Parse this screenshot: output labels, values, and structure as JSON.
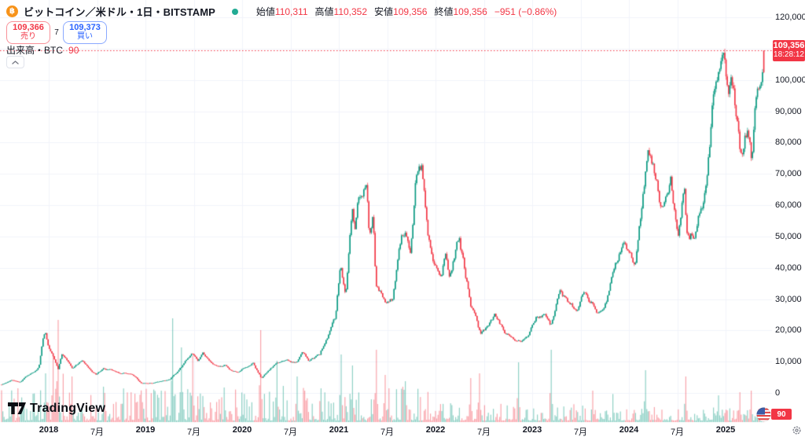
{
  "header": {
    "title": "ビットコイン／米ドル・1日・BITSTAMP",
    "ohlc": [
      {
        "label": "始値",
        "value": "110,311"
      },
      {
        "label": "高値",
        "value": "110,352"
      },
      {
        "label": "安値",
        "value": "109,356"
      },
      {
        "label": "終値",
        "value": "109,356"
      }
    ],
    "change": "−951 (−0.86%)"
  },
  "trade_panel": {
    "sell": {
      "price": "109,366",
      "label": "売り"
    },
    "spread": "7",
    "buy": {
      "price": "109,373",
      "label": "買い"
    }
  },
  "volume_row": {
    "label": "出来高・BTC",
    "value": "90"
  },
  "last_price_label": {
    "price": "109,356",
    "time": "18:28:12"
  },
  "volume_axis_label": "90",
  "watermark": "TradingView",
  "chart_data": {
    "type": "candlestick",
    "title": "ビットコイン／米ドル・1日・BITSTAMP",
    "interval": "1日",
    "last_price": 109356,
    "last_time": "18:28:12",
    "ohlc": {
      "open": 110311,
      "high": 110352,
      "low": 109356,
      "close": 109356,
      "change": -951,
      "change_pct": -0.86
    },
    "volume_btc": 90,
    "y_axis": {
      "min": 0,
      "max": 120000,
      "step": 10000
    },
    "y_tick_labels": [
      "0",
      "10,000",
      "20,000",
      "30,000",
      "40,000",
      "50,000",
      "60,000",
      "70,000",
      "80,000",
      "90,000",
      "100,000",
      "110,000",
      "120,000"
    ],
    "x_ticks": [
      {
        "d": "2018-01-01",
        "label": "2018",
        "year": true
      },
      {
        "d": "2018-07-01",
        "label": "7月"
      },
      {
        "d": "2019-01-01",
        "label": "2019",
        "year": true
      },
      {
        "d": "2019-07-01",
        "label": "7月"
      },
      {
        "d": "2020-01-01",
        "label": "2020",
        "year": true
      },
      {
        "d": "2020-07-01",
        "label": "7月"
      },
      {
        "d": "2021-01-01",
        "label": "2021",
        "year": true
      },
      {
        "d": "2021-07-01",
        "label": "7月"
      },
      {
        "d": "2022-01-01",
        "label": "2022",
        "year": true
      },
      {
        "d": "2022-07-01",
        "label": "7月"
      },
      {
        "d": "2023-01-01",
        "label": "2023",
        "year": true
      },
      {
        "d": "2023-07-01",
        "label": "7月"
      },
      {
        "d": "2024-01-01",
        "label": "2024",
        "year": true
      },
      {
        "d": "2024-07-01",
        "label": "7月"
      },
      {
        "d": "2025-01-01",
        "label": "2025",
        "year": true
      }
    ],
    "price_anchors": [
      [
        "2017-07-01",
        2500
      ],
      [
        "2017-08-15",
        4200
      ],
      [
        "2017-09-14",
        3400
      ],
      [
        "2017-10-12",
        5600
      ],
      [
        "2017-11-08",
        7400
      ],
      [
        "2017-11-25",
        8800
      ],
      [
        "2017-12-08",
        16200
      ],
      [
        "2017-12-17",
        19500
      ],
      [
        "2018-01-01",
        13700
      ],
      [
        "2018-01-16",
        11200
      ],
      [
        "2018-02-06",
        7000
      ],
      [
        "2018-02-20",
        11300
      ],
      [
        "2018-03-29",
        7100
      ],
      [
        "2018-05-05",
        9800
      ],
      [
        "2018-06-28",
        6100
      ],
      [
        "2018-07-25",
        8200
      ],
      [
        "2018-09-20",
        6450
      ],
      [
        "2018-11-12",
        6350
      ],
      [
        "2018-12-15",
        3250
      ],
      [
        "2019-02-07",
        3400
      ],
      [
        "2019-04-01",
        4150
      ],
      [
        "2019-05-13",
        7900
      ],
      [
        "2019-06-26",
        13000
      ],
      [
        "2019-07-16",
        9700
      ],
      [
        "2019-08-05",
        11600
      ],
      [
        "2019-09-24",
        8450
      ],
      [
        "2019-10-26",
        9250
      ],
      [
        "2019-11-24",
        6900
      ],
      [
        "2019-12-17",
        6850
      ],
      [
        "2020-02-13",
        10300
      ],
      [
        "2020-03-13",
        5000
      ],
      [
        "2020-04-29",
        8800
      ],
      [
        "2020-06-01",
        9500
      ],
      [
        "2020-07-20",
        9200
      ],
      [
        "2020-08-17",
        12250
      ],
      [
        "2020-09-08",
        10200
      ],
      [
        "2020-10-20",
        12000
      ],
      [
        "2020-11-24",
        19100
      ],
      [
        "2020-12-19",
        23800
      ],
      [
        "2021-01-08",
        40600
      ],
      [
        "2021-01-27",
        30400
      ],
      [
        "2021-02-21",
        57400
      ],
      [
        "2021-03-01",
        49600
      ],
      [
        "2021-03-13",
        61200
      ],
      [
        "2021-04-14",
        64600
      ],
      [
        "2021-04-25",
        49100
      ],
      [
        "2021-05-09",
        58300
      ],
      [
        "2021-05-19",
        37000
      ],
      [
        "2021-06-22",
        29700
      ],
      [
        "2021-07-20",
        29800
      ],
      [
        "2021-08-23",
        50200
      ],
      [
        "2021-09-07",
        52600
      ],
      [
        "2021-09-29",
        41300
      ],
      [
        "2021-10-20",
        66900
      ],
      [
        "2021-11-09",
        68500
      ],
      [
        "2021-12-04",
        49300
      ],
      [
        "2022-01-22",
        35100
      ],
      [
        "2022-02-10",
        44400
      ],
      [
        "2022-02-24",
        35200
      ],
      [
        "2022-03-29",
        47500
      ],
      [
        "2022-05-12",
        28200
      ],
      [
        "2022-06-18",
        18300
      ],
      [
        "2022-07-13",
        19900
      ],
      [
        "2022-08-13",
        24400
      ],
      [
        "2022-09-21",
        18600
      ],
      [
        "2022-11-09",
        15900
      ],
      [
        "2022-12-16",
        16700
      ],
      [
        "2023-01-21",
        22700
      ],
      [
        "2023-02-16",
        24600
      ],
      [
        "2023-03-10",
        20100
      ],
      [
        "2023-04-13",
        30400
      ],
      [
        "2023-06-15",
        25100
      ],
      [
        "2023-07-13",
        31400
      ],
      [
        "2023-09-11",
        25200
      ],
      [
        "2023-10-01",
        27000
      ],
      [
        "2023-10-24",
        33900
      ],
      [
        "2023-12-08",
        44200
      ],
      [
        "2024-01-23",
        39600
      ],
      [
        "2024-02-28",
        62400
      ],
      [
        "2024-03-13",
        73000
      ],
      [
        "2024-05-01",
        57400
      ],
      [
        "2024-06-06",
        71000
      ],
      [
        "2024-07-05",
        54100
      ],
      [
        "2024-07-29",
        69800
      ],
      [
        "2024-08-05",
        54000
      ],
      [
        "2024-09-06",
        54300
      ],
      [
        "2024-10-20",
        69000
      ],
      [
        "2024-11-22",
        98900
      ],
      [
        "2024-12-17",
        106000
      ],
      [
        "2025-01-13",
        94500
      ],
      [
        "2025-01-21",
        106100
      ],
      [
        "2025-02-03",
        97700
      ],
      [
        "2025-02-28",
        79000
      ],
      [
        "2025-03-24",
        87500
      ],
      [
        "2025-04-08",
        76300
      ],
      [
        "2025-04-25",
        94700
      ],
      [
        "2025-05-10",
        104100
      ],
      [
        "2025-05-22",
        110300
      ],
      [
        "2025-05-26",
        109356
      ]
    ],
    "volume_spikes": [
      [
        "2017-12-20",
        62
      ],
      [
        "2018-01-17",
        85
      ],
      [
        "2018-02-05",
        130
      ],
      [
        "2018-03-30",
        58
      ],
      [
        "2019-04-11",
        132
      ],
      [
        "2019-05-14",
        95
      ],
      [
        "2019-06-27",
        84
      ],
      [
        "2020-03-12",
        117
      ],
      [
        "2020-05-10",
        78
      ],
      [
        "2020-07-27",
        58
      ],
      [
        "2021-01-11",
        86
      ],
      [
        "2021-02-23",
        72
      ],
      [
        "2021-05-19",
        92
      ],
      [
        "2021-06-22",
        60
      ],
      [
        "2021-09-07",
        52
      ],
      [
        "2022-05-12",
        56
      ],
      [
        "2022-06-13",
        62
      ],
      [
        "2022-11-09",
        76
      ],
      [
        "2023-03-13",
        92
      ],
      [
        "2023-08-17",
        40
      ],
      [
        "2024-03-05",
        66
      ],
      [
        "2024-08-05",
        58
      ],
      [
        "2024-12-05",
        34
      ],
      [
        "2025-02-25",
        38
      ],
      [
        "2025-04-07",
        40
      ]
    ],
    "colors": {
      "up": "#089981",
      "down": "#F23645",
      "grid": "#F0F3FA",
      "axis_text": "#131722",
      "accent_red": "#F23645",
      "accent_blue": "#2962FF"
    }
  }
}
